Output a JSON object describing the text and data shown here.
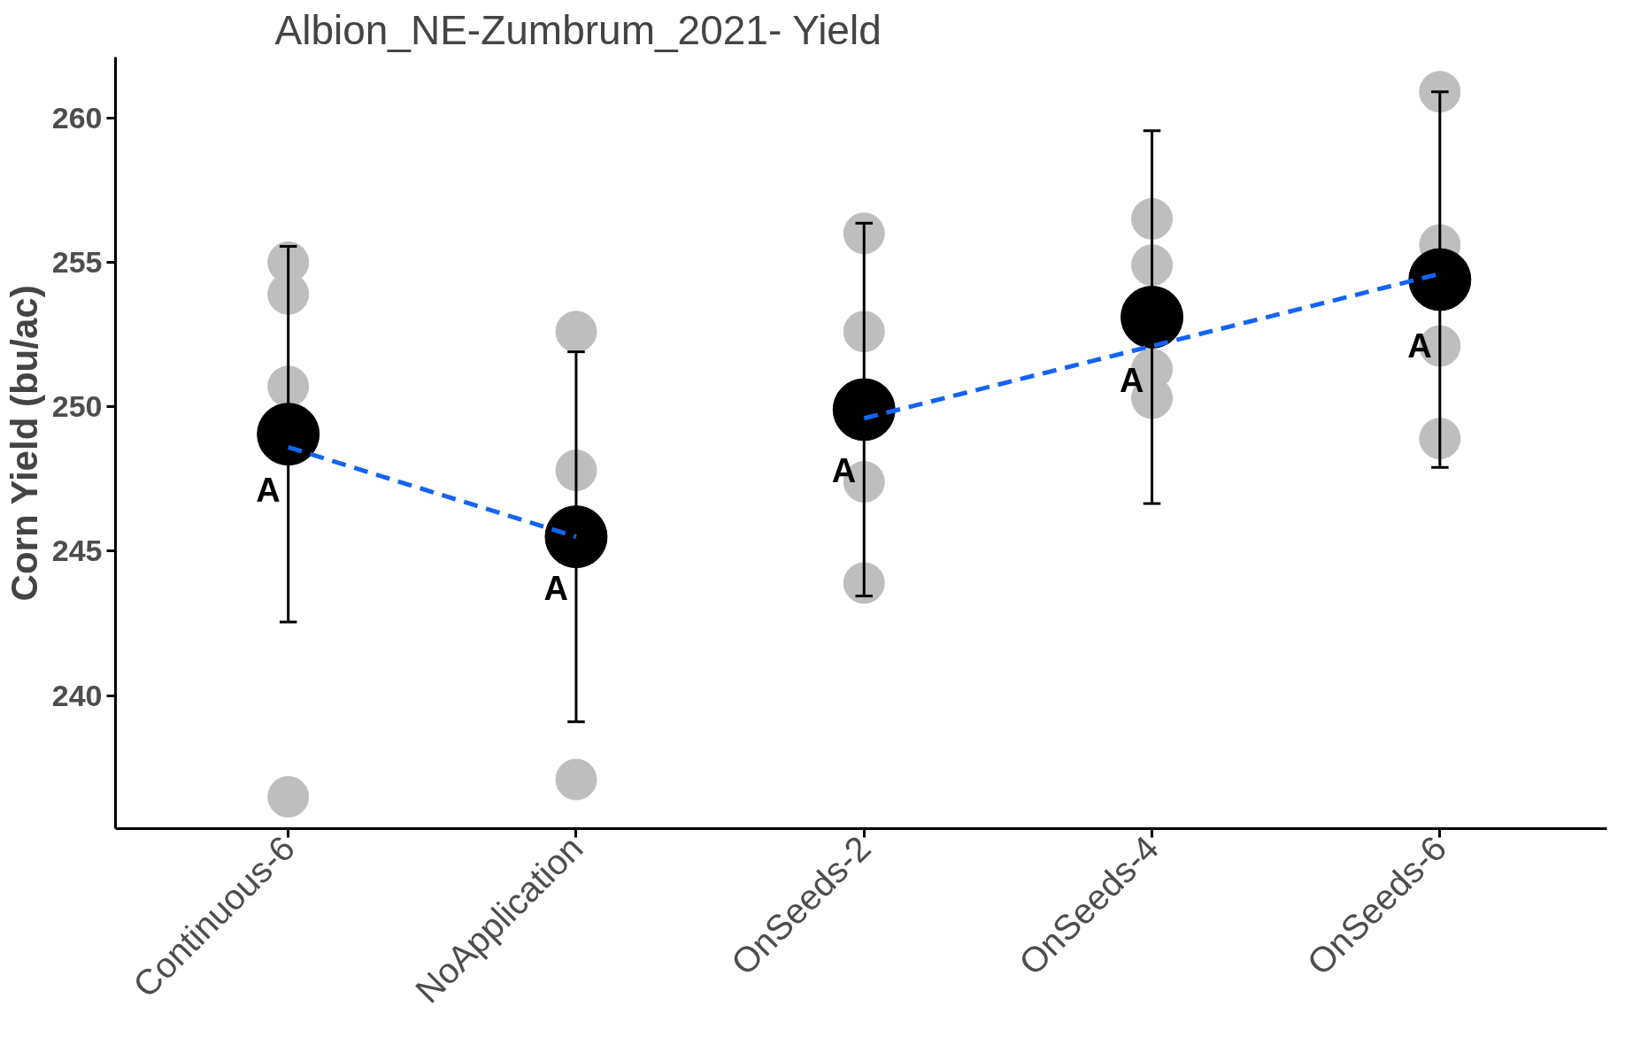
{
  "chart_data": {
    "type": "scatter",
    "title": "Albion_NE-Zumbrum_2021- Yield",
    "ylabel": "Corn Yield (bu/ac)",
    "categories": [
      "Continuous-6",
      "NoApplication",
      "OnSeeds-2",
      "OnSeeds-4",
      "OnSeeds-6"
    ],
    "ylim": [
      235.4,
      262.1
    ],
    "yticks": [
      240,
      245,
      250,
      255,
      260
    ],
    "series": [
      {
        "marker": "circle",
        "color": "#bebebe",
        "x": [
          "Continuous-6",
          "Continuous-6",
          "Continuous-6",
          "Continuous-6",
          "NoApplication",
          "NoApplication",
          "NoApplication",
          "NoApplication",
          "OnSeeds-2",
          "OnSeeds-2",
          "OnSeeds-2",
          "OnSeeds-2",
          "OnSeeds-4",
          "OnSeeds-4",
          "OnSeeds-4",
          "OnSeeds-4",
          "OnSeeds-6",
          "OnSeeds-6",
          "OnSeeds-6",
          "OnSeeds-6"
        ],
        "values": [
          255.0,
          253.9,
          250.7,
          236.5,
          252.6,
          247.8,
          null,
          237.1,
          256.0,
          252.6,
          247.4,
          243.9,
          256.5,
          254.9,
          251.3,
          250.3,
          260.9,
          255.6,
          252.1,
          248.9
        ]
      },
      {
        "marker": "circle",
        "color": "#000000",
        "values": [
          249.05,
          245.5,
          249.9,
          253.1,
          254.4
        ],
        "errors": [
          6.5,
          6.4,
          6.45,
          6.45,
          6.5
        ]
      },
      {
        "type": "line",
        "color": "#1464f4",
        "line_style": "dashed",
        "x": [
          "Continuous-6",
          "NoApplication"
        ],
        "values": [
          248.6,
          245.5
        ]
      },
      {
        "type": "line",
        "color": "#1464f4",
        "line_style": "dashed",
        "x": [
          "OnSeeds-2",
          "OnSeeds-6"
        ],
        "values": [
          249.6,
          254.6
        ]
      }
    ],
    "annotations": [
      {
        "text": "A",
        "x": "Continuous-6",
        "y": 247.1
      },
      {
        "text": "A",
        "x": "NoApplication",
        "y": 243.7
      },
      {
        "text": "A",
        "x": "OnSeeds-2",
        "y": 247.8
      },
      {
        "text": "A",
        "x": "OnSeeds-4",
        "y": 250.9
      },
      {
        "text": "A",
        "x": "OnSeeds-6",
        "y": 252.1
      }
    ]
  }
}
